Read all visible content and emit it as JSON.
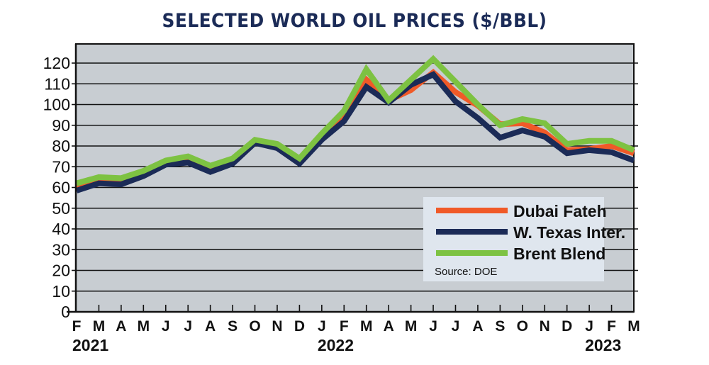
{
  "chart_data": {
    "type": "line",
    "title": "SELECTED WORLD OIL PRICES ($/BBL)",
    "xlabel": "",
    "ylabel": "",
    "ylim": [
      0,
      130
    ],
    "yticks": [
      0,
      10,
      20,
      30,
      40,
      50,
      60,
      70,
      80,
      90,
      100,
      110,
      120
    ],
    "grid": true,
    "categories": [
      "F",
      "M",
      "A",
      "M",
      "J",
      "J",
      "A",
      "S",
      "O",
      "N",
      "D",
      "J",
      "F",
      "M",
      "A",
      "M",
      "J",
      "J",
      "A",
      "S",
      "O",
      "N",
      "D",
      "J",
      "F",
      "M"
    ],
    "year_labels": [
      {
        "label": "2021",
        "at_index": 0
      },
      {
        "label": "2022",
        "at_index": 11
      },
      {
        "label": "2023",
        "at_index": 23
      }
    ],
    "series": [
      {
        "name": "Dubai Fateh",
        "color": "#f05a28",
        "values": [
          60,
          63,
          62.5,
          66.5,
          71.5,
          73,
          69,
          73,
          82,
          80,
          73,
          84,
          93,
          112,
          102,
          107,
          115.5,
          106,
          99.5,
          90.5,
          91,
          86.5,
          78,
          78.5,
          80,
          76.5
        ]
      },
      {
        "name": "W. Texas Inter.",
        "color": "#1b2b57",
        "values": [
          58.5,
          62,
          61.5,
          65.5,
          71,
          72,
          67.5,
          71.5,
          81.5,
          79,
          71.5,
          83,
          92,
          108.5,
          101,
          109.5,
          114.5,
          101.5,
          93.5,
          84,
          87.5,
          84.5,
          76.5,
          78,
          77,
          73
        ]
      },
      {
        "name": "Brent Blend",
        "color": "#7dc242",
        "values": [
          62,
          65,
          64.5,
          68,
          73,
          75,
          70.5,
          74,
          83,
          81,
          74,
          86,
          97,
          117,
          102,
          112,
          122,
          111,
          100,
          90,
          93,
          91,
          81,
          82.5,
          82.5,
          78
        ]
      }
    ],
    "legend_placement": "bottom-right",
    "source": "Source: DOE"
  },
  "colors": {
    "plot_background": "#c8cdd2",
    "legend_background": "#dfe6ee",
    "title_color": "#1b2b57"
  }
}
